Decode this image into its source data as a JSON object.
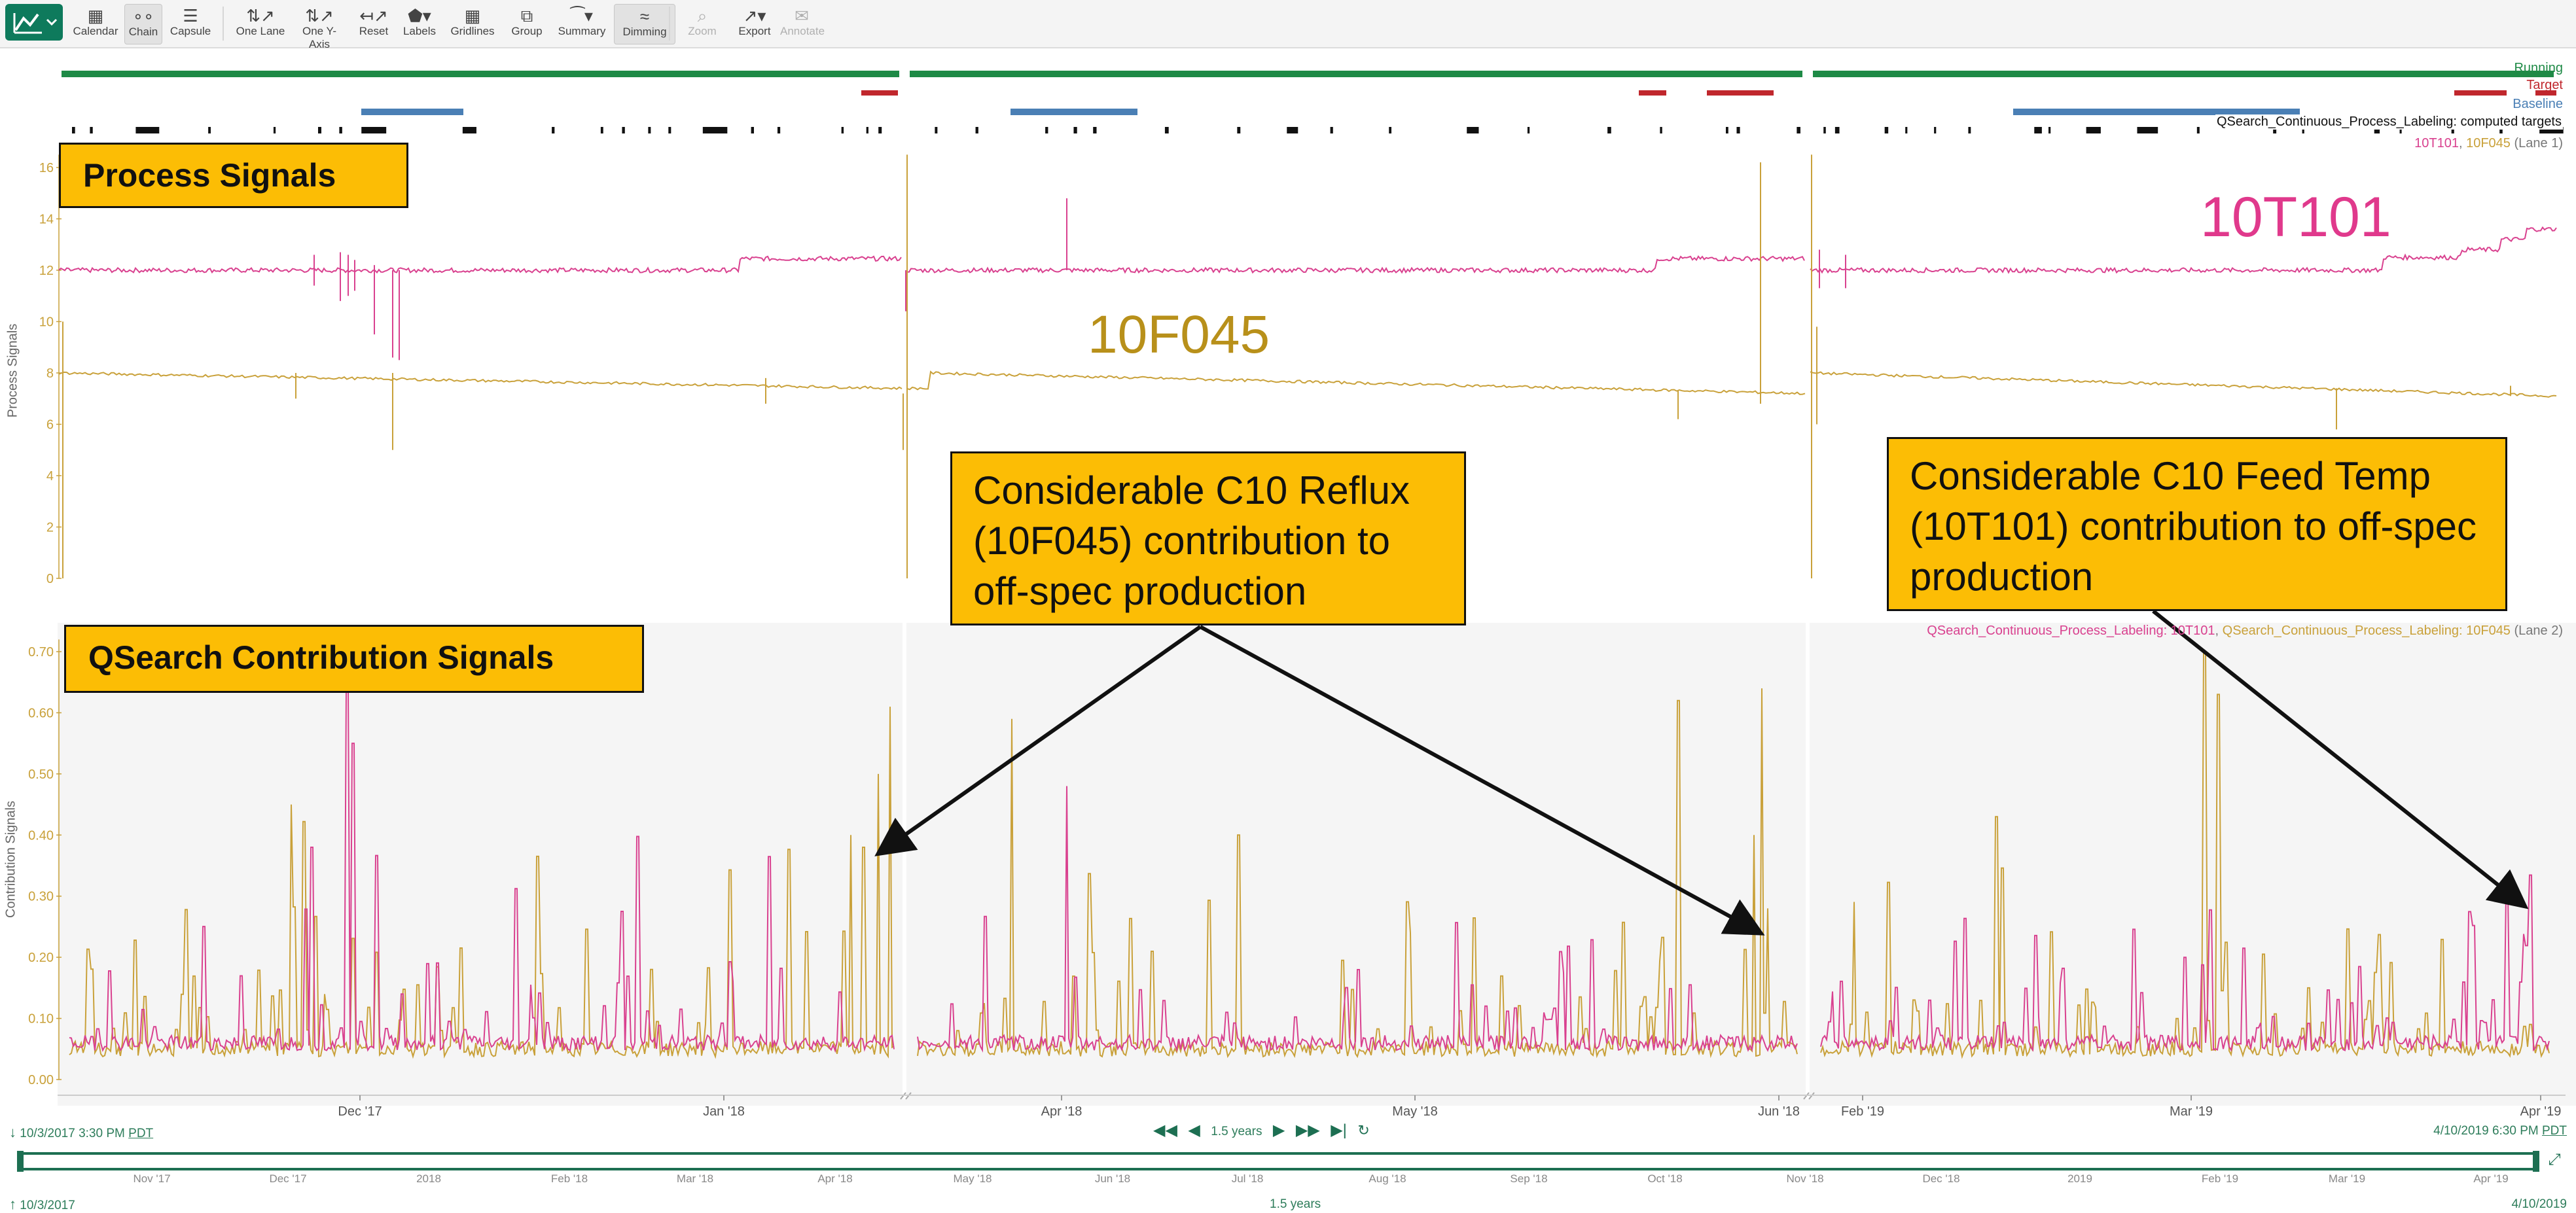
{
  "toolbar": {
    "buttons": [
      {
        "label": "Calendar",
        "icon": "calendar-icon"
      },
      {
        "label": "Chain",
        "icon": "chain-icon"
      },
      {
        "label": "Capsule",
        "icon": "capsule-icon"
      },
      {
        "label": "One Lane",
        "icon": "one-lane-icon"
      },
      {
        "label": "One Y-Axis",
        "icon": "one-y-axis-icon"
      },
      {
        "label": "Reset",
        "icon": "reset-icon"
      },
      {
        "label": "Labels",
        "icon": "labels-icon"
      },
      {
        "label": "Gridlines",
        "icon": "gridlines-icon"
      },
      {
        "label": "Group",
        "icon": "group-icon"
      },
      {
        "label": "Summary",
        "icon": "summary-icon"
      },
      {
        "label": "Dimming",
        "icon": "dimming-icon"
      },
      {
        "label": "Zoom",
        "icon": "zoom-icon"
      },
      {
        "label": "Export",
        "icon": "export-icon"
      },
      {
        "label": "Annotate",
        "icon": "annotate-icon"
      }
    ]
  },
  "capsules": {
    "running": "Running",
    "target": "Target",
    "baseline": "Baseline",
    "computed": "QSearch_Continuous_Process_Labeling: computed targets"
  },
  "lane1": {
    "title": "Process Signals",
    "legend_a": "10T101",
    "legend_sep": ", ",
    "legend_b": "10F045",
    "legend_suffix": " (Lane 1)",
    "y_axis_label": "Process Signals",
    "y_ticks": [
      "16",
      "14",
      "12",
      "10",
      "8",
      "6",
      "4",
      "2",
      "0"
    ],
    "label_10f045": "10F045",
    "label_10t101": "10T101"
  },
  "lane2": {
    "title": "QSearch Contribution Signals",
    "legend_a": "QSearch_Continuous_Process_Labeling: 10T101",
    "legend_sep": ", ",
    "legend_b": "QSearch_Continuous_Process_Labeling: 10F045",
    "legend_suffix": " (Lane 2)",
    "y_axis_label": "Contribution Signals",
    "y_ticks": [
      "0.70",
      "0.60",
      "0.50",
      "0.40",
      "0.30",
      "0.20",
      "0.10",
      "0.00"
    ]
  },
  "callouts": {
    "reflux": "Considerable C10 Reflux (10F045) contribution to off-spec production",
    "feed_temp": "Considerable C10 Feed Temp (10T101) contribution to off-spec production"
  },
  "x_axis": {
    "ticks": [
      "Dec '17",
      "Jan '18",
      "Apr '18",
      "May '18",
      "Jun '18",
      "Feb '19",
      "Mar '19",
      "Apr '19"
    ]
  },
  "range": {
    "start": "10/3/2017 3:30 PM",
    "start_tz": "PDT",
    "duration": "1.5 years",
    "end": "4/10/2019 6:30 PM",
    "end_tz": "PDT"
  },
  "overview": {
    "ticks": [
      "Nov '17",
      "Dec '17",
      "2018",
      "Feb '18",
      "Mar '18",
      "Apr '18",
      "May '18",
      "Jun '18",
      "Jul '18",
      "Aug '18",
      "Sep '18",
      "Oct '18",
      "Nov '18",
      "Dec '18",
      "2019",
      "Feb '19",
      "Mar '19",
      "Apr '19"
    ],
    "start": "10/3/2017",
    "duration": "1.5 years",
    "end": "4/10/2019"
  },
  "colors": {
    "t101": "#d9418f",
    "f045": "#c9a13a",
    "running": "#1e8a46",
    "target": "#c0272d",
    "baseline": "#4a7fb5",
    "annotation_fill": "#fcbd05",
    "label_10t101": "#e0398c",
    "label_10f045": "#b8901a"
  }
}
